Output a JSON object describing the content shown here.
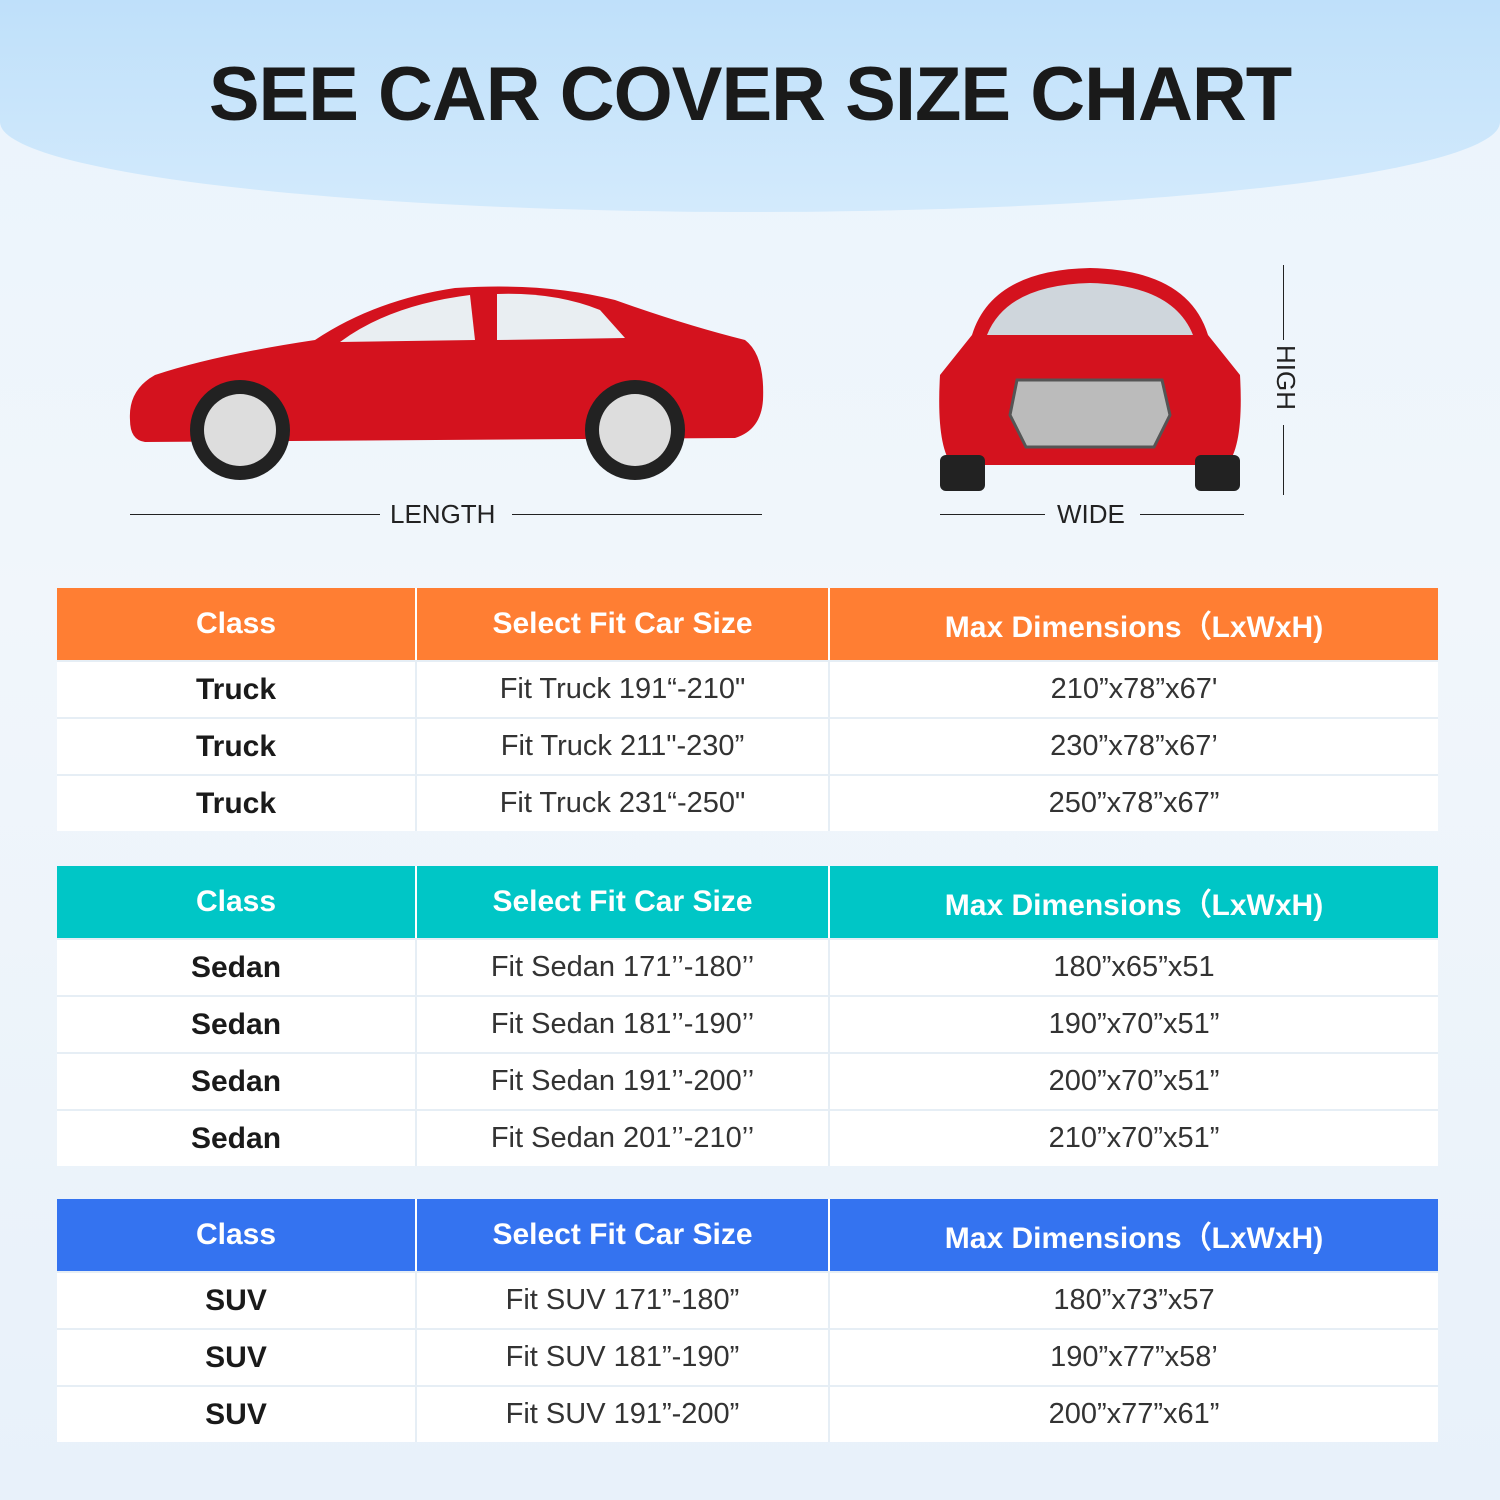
{
  "title": "SEE CAR COVER SIZE CHART",
  "diagram": {
    "length_label": "LENGTH",
    "wide_label": "WIDE",
    "high_label": "HIGH"
  },
  "colors": {
    "truck_header": "#FF7E33",
    "sedan_header": "#00C6C6",
    "suv_header": "#3473F0",
    "car": "#D4121E"
  },
  "tables": [
    {
      "headers": [
        "Class",
        "Select Fit Car Size",
        "Max Dimensions（LxWxH)"
      ],
      "rows": [
        [
          "Truck",
          "Fit Truck 191“-210\"",
          "210”x78”x67'"
        ],
        [
          "Truck",
          "Fit Truck 211\"-230”",
          "230”x78”x67’"
        ],
        [
          "Truck",
          "Fit Truck 231“-250\"",
          "250”x78”x67”"
        ]
      ]
    },
    {
      "headers": [
        "Class",
        "Select Fit Car Size",
        "Max Dimensions（LxWxH)"
      ],
      "rows": [
        [
          "Sedan",
          "Fit Sedan 171’’-180’’",
          "180”x65”x51"
        ],
        [
          "Sedan",
          "Fit Sedan 181’’-190’’",
          "190”x70”x51”"
        ],
        [
          "Sedan",
          "Fit Sedan 191’’-200’’",
          "200”x70”x51”"
        ],
        [
          "Sedan",
          "Fit Sedan 201’’-210’’",
          "210”x70”x51”"
        ]
      ]
    },
    {
      "headers": [
        "Class",
        "Select Fit Car Size",
        "Max Dimensions（LxWxH)"
      ],
      "rows": [
        [
          "SUV",
          "Fit SUV 171”-180”",
          "180”x73”x57"
        ],
        [
          "SUV",
          "Fit SUV 181”-190”",
          "190”x77”x58’"
        ],
        [
          "SUV",
          "Fit SUV 191”-200”",
          "200”x77”x61”"
        ]
      ]
    }
  ]
}
